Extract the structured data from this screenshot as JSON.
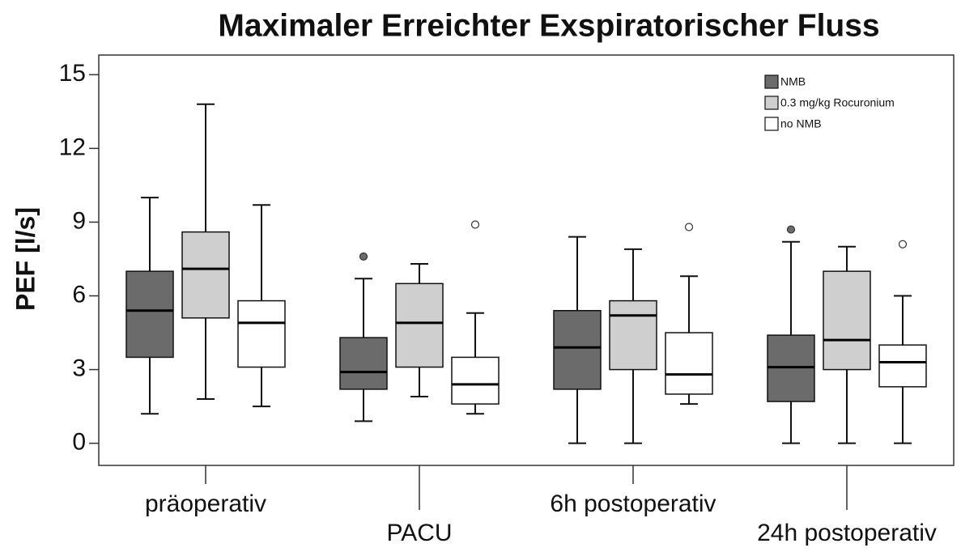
{
  "chart_data": {
    "type": "box",
    "title": "Maximaler Erreichter Exspiratorischer Fluss",
    "y_label": "PEF [l/s]",
    "categories": [
      "präoperativ",
      "PACU",
      "6h postoperativ",
      "24h postoperativ"
    ],
    "ylim": [
      -0.9,
      15.8
    ],
    "yticks": [
      0,
      3,
      6,
      9,
      12,
      15
    ],
    "grid": false,
    "legend": "upper right",
    "series": [
      {
        "name": "NMB",
        "color": "#6b6b6b",
        "values": [
          {
            "min": 1.2,
            "q1": 3.5,
            "median": 5.4,
            "q3": 7.0,
            "max": 10.0,
            "outliers": []
          },
          {
            "min": 0.9,
            "q1": 2.2,
            "median": 2.9,
            "q3": 4.3,
            "max": 6.7,
            "outliers": [
              7.6
            ]
          },
          {
            "min": 0,
            "q1": 2.2,
            "median": 3.9,
            "q3": 5.4,
            "max": 8.4,
            "outliers": []
          },
          {
            "min": 0,
            "q1": 1.7,
            "median": 3.1,
            "q3": 4.4,
            "max": 8.2,
            "outliers": [
              8.7
            ]
          }
        ]
      },
      {
        "name": "0.3 mg/kg Rocuronium",
        "color": "#cfcfcf",
        "values": [
          {
            "min": 1.8,
            "q1": 5.1,
            "median": 7.1,
            "q3": 8.6,
            "max": 13.8,
            "outliers": []
          },
          {
            "min": 1.9,
            "q1": 3.1,
            "median": 4.9,
            "q3": 6.5,
            "max": 7.3,
            "outliers": []
          },
          {
            "min": 0,
            "q1": 3.0,
            "median": 5.2,
            "q3": 5.8,
            "max": 7.9,
            "outliers": []
          },
          {
            "min": 0,
            "q1": 3.0,
            "median": 4.2,
            "q3": 7.0,
            "max": 8.0,
            "outliers": []
          }
        ]
      },
      {
        "name": "no NMB",
        "color": "#ffffff",
        "values": [
          {
            "min": 1.5,
            "q1": 3.1,
            "median": 4.9,
            "q3": 5.8,
            "max": 9.7,
            "outliers": []
          },
          {
            "min": 1.2,
            "q1": 1.6,
            "median": 2.4,
            "q3": 3.5,
            "max": 5.3,
            "outliers": [
              8.9
            ]
          },
          {
            "min": 1.6,
            "q1": 2.0,
            "median": 2.8,
            "q3": 4.5,
            "max": 6.8,
            "outliers": [
              8.8
            ]
          },
          {
            "min": 0,
            "q1": 2.3,
            "median": 3.3,
            "q3": 4.0,
            "max": 6.0,
            "outliers": [
              8.1
            ]
          }
        ]
      }
    ]
  }
}
